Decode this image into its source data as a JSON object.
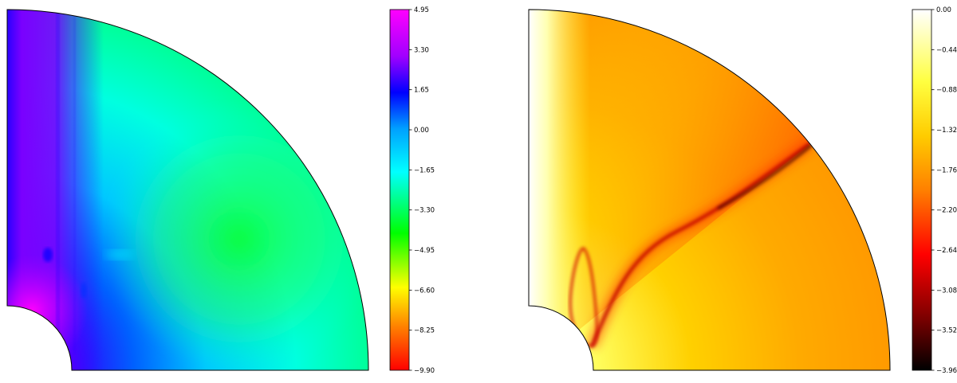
{
  "chart_data": [
    {
      "type": "heatmap",
      "geometry": "quarter-annulus",
      "colormap": "gist_rainbow (magenta-blue-cyan-green-yellow-red)",
      "colorbar": {
        "ticks": [
          "4.95",
          "3.30",
          "1.65",
          "0.00",
          "−1.65",
          "−3.30",
          "−4.95",
          "−6.60",
          "−8.25",
          "−9.90"
        ],
        "range": [
          -9.9,
          4.95
        ],
        "stops": [
          "#ff00ff",
          "#a000ff",
          "#0000ff",
          "#00a0ff",
          "#00ffff",
          "#00ff00",
          "#ffff00",
          "#ff8000",
          "#ff0000"
        ]
      }
    },
    {
      "type": "heatmap",
      "geometry": "quarter-annulus",
      "colormap": "hot (black-red-yellow-white)",
      "colorbar": {
        "ticks": [
          "0.00",
          "−0.44",
          "−0.88",
          "−1.32",
          "−1.76",
          "−2.20",
          "−2.64",
          "−3.08",
          "−3.52",
          "−3.96"
        ],
        "range": [
          -3.96,
          0.0
        ],
        "stops": [
          "#ffffff",
          "#ffff40",
          "#ffcc00",
          "#ff8000",
          "#ff0000",
          "#800000",
          "#000000"
        ]
      }
    }
  ]
}
